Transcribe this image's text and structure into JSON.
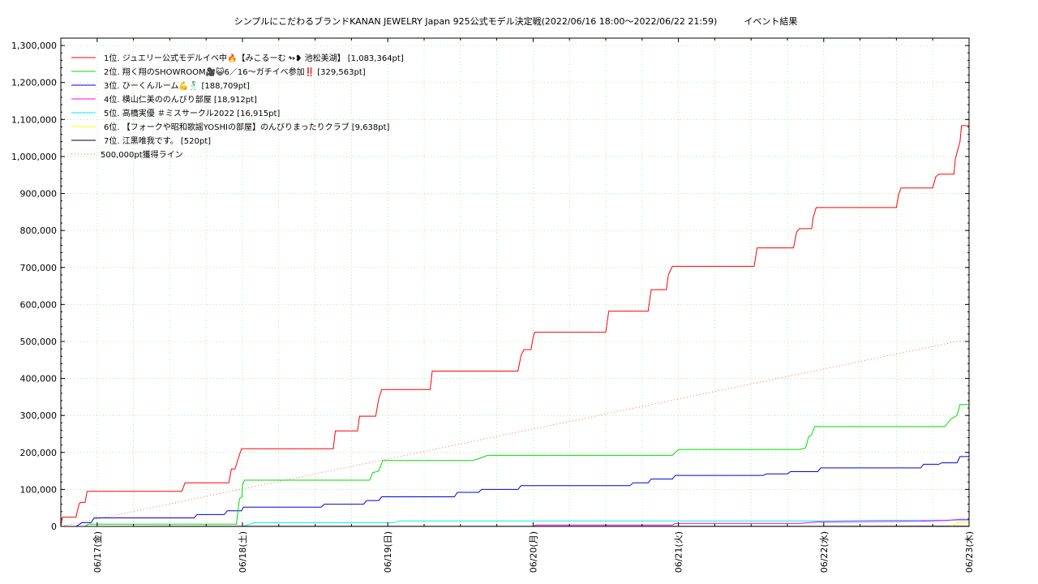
{
  "title": "シンプルにこだわるブランドKANAN JEWELRY Japan 925公式モデル決定戦(2022/06/16 18:00～2022/06/22 21:59)　　　イベント結果",
  "chart_data": {
    "type": "line",
    "title": "シンプルにこだわるブランドKANAN JEWELRY Japan 925公式モデル決定戦(2022/06/16 18:00～2022/06/22 21:59)　　　イベント結果",
    "xlabel": "",
    "ylabel": "",
    "x_range": [
      "2022-06-16 18:00",
      "2022-06-23 00:00"
    ],
    "ylim": [
      0,
      1320000
    ],
    "y_ticks": [
      0,
      100000,
      200000,
      300000,
      400000,
      500000,
      600000,
      700000,
      800000,
      900000,
      1000000,
      1100000,
      1200000,
      1300000
    ],
    "y_tick_labels": [
      "0",
      "100,000",
      "200,000",
      "300,000",
      "400,000",
      "500,000",
      "600,000",
      "700,000",
      "800,000",
      "900,000",
      "1,000,000",
      "1,100,000",
      "1,200,000",
      "1,300,000"
    ],
    "x_ticks": [
      "2022-06-17 00:00",
      "2022-06-18 00:00",
      "2022-06-19 00:00",
      "2022-06-20 00:00",
      "2022-06-21 00:00",
      "2022-06-22 00:00",
      "2022-06-23 00:00"
    ],
    "x_tick_labels": [
      "06/17(金)",
      "06/18(土)",
      "06/19(日)",
      "06/20(月)",
      "06/21(火)",
      "06/22(水)",
      "06/23(木)"
    ],
    "grid": true,
    "legend_position": "top-left",
    "series": [
      {
        "name": "1位. ジュエリー公式モデルイベ中🔥【みこるーむ ↬❥ 池松美湖】 [1,083,364pt]",
        "color": "#ff0000",
        "points": [
          [
            "2022-06-16 18:00",
            0
          ],
          [
            "2022-06-16 18:15",
            25000
          ],
          [
            "2022-06-16 20:30",
            25000
          ],
          [
            "2022-06-16 21:00",
            60000
          ],
          [
            "2022-06-16 21:15",
            65000
          ],
          [
            "2022-06-16 22:00",
            65000
          ],
          [
            "2022-06-16 22:20",
            95000
          ],
          [
            "2022-06-17 14:00",
            95000
          ],
          [
            "2022-06-17 14:30",
            118000
          ],
          [
            "2022-06-17 21:45",
            118000
          ],
          [
            "2022-06-17 22:10",
            155000
          ],
          [
            "2022-06-17 22:45",
            155000
          ],
          [
            "2022-06-17 23:20",
            185000
          ],
          [
            "2022-06-17 23:50",
            210000
          ],
          [
            "2022-06-18 15:00",
            210000
          ],
          [
            "2022-06-18 15:20",
            258000
          ],
          [
            "2022-06-18 19:00",
            258000
          ],
          [
            "2022-06-18 19:20",
            298000
          ],
          [
            "2022-06-18 22:00",
            298000
          ],
          [
            "2022-06-18 22:30",
            345000
          ],
          [
            "2022-06-18 23:00",
            370000
          ],
          [
            "2022-06-19 07:00",
            370000
          ],
          [
            "2022-06-19 07:20",
            420000
          ],
          [
            "2022-06-19 21:30",
            420000
          ],
          [
            "2022-06-19 22:00",
            462000
          ],
          [
            "2022-06-19 22:30",
            478000
          ],
          [
            "2022-06-19 23:40",
            478000
          ],
          [
            "2022-06-20 00:00",
            510000
          ],
          [
            "2022-06-20 00:15",
            525000
          ],
          [
            "2022-06-20 12:00",
            525000
          ],
          [
            "2022-06-20 12:30",
            582000
          ],
          [
            "2022-06-20 19:00",
            582000
          ],
          [
            "2022-06-20 19:30",
            640000
          ],
          [
            "2022-06-20 22:00",
            640000
          ],
          [
            "2022-06-20 22:20",
            680000
          ],
          [
            "2022-06-20 23:00",
            703000
          ],
          [
            "2022-06-21 12:30",
            703000
          ],
          [
            "2022-06-21 13:00",
            753000
          ],
          [
            "2022-06-21 19:00",
            753000
          ],
          [
            "2022-06-21 19:30",
            795000
          ],
          [
            "2022-06-21 20:00",
            805000
          ],
          [
            "2022-06-21 22:00",
            805000
          ],
          [
            "2022-06-21 22:15",
            835000
          ],
          [
            "2022-06-21 22:45",
            862000
          ],
          [
            "2022-06-22 12:00",
            862000
          ],
          [
            "2022-06-22 12:20",
            895000
          ],
          [
            "2022-06-22 12:45",
            915000
          ],
          [
            "2022-06-22 18:00",
            915000
          ],
          [
            "2022-06-22 18:30",
            945000
          ],
          [
            "2022-06-22 19:00",
            952000
          ],
          [
            "2022-06-22 21:30",
            952000
          ],
          [
            "2022-06-22 21:45",
            995000
          ],
          [
            "2022-06-22 22:30",
            1040000
          ],
          [
            "2022-06-22 22:45",
            1083364
          ],
          [
            "2022-06-23 00:00",
            1083364
          ]
        ]
      },
      {
        "name": "2位. 翔く翔のSHOWROOM🎥😺6／16〜ガチイベ参加‼️ [329,563pt]",
        "color": "#00dd00",
        "points": [
          [
            "2022-06-16 18:00",
            0
          ],
          [
            "2022-06-16 22:00",
            0
          ],
          [
            "2022-06-16 22:30",
            6000
          ],
          [
            "2022-06-17 23:00",
            6000
          ],
          [
            "2022-06-17 23:30",
            75000
          ],
          [
            "2022-06-17 23:55",
            80000
          ],
          [
            "2022-06-18 00:00",
            112000
          ],
          [
            "2022-06-18 00:20",
            125000
          ],
          [
            "2022-06-18 21:00",
            125000
          ],
          [
            "2022-06-18 21:30",
            145000
          ],
          [
            "2022-06-18 22:30",
            150000
          ],
          [
            "2022-06-18 23:10",
            178000
          ],
          [
            "2022-06-19 14:00",
            178000
          ],
          [
            "2022-06-19 15:00",
            183000
          ],
          [
            "2022-06-19 16:30",
            192000
          ],
          [
            "2022-06-20 18:00",
            192000
          ],
          [
            "2022-06-20 23:00",
            192000
          ],
          [
            "2022-06-21 00:00",
            208000
          ],
          [
            "2022-06-21 20:00",
            208000
          ],
          [
            "2022-06-21 21:00",
            212000
          ],
          [
            "2022-06-21 21:30",
            242000
          ],
          [
            "2022-06-21 22:00",
            248000
          ],
          [
            "2022-06-21 22:30",
            270000
          ],
          [
            "2022-06-22 20:00",
            270000
          ],
          [
            "2022-06-22 21:00",
            290000
          ],
          [
            "2022-06-22 22:00",
            300000
          ],
          [
            "2022-06-22 22:30",
            329563
          ],
          [
            "2022-06-23 00:00",
            329563
          ]
        ]
      },
      {
        "name": "3位. ひーくんルーム💪🕺 [188,709pt]",
        "color": "#0000dd",
        "points": [
          [
            "2022-06-16 18:00",
            0
          ],
          [
            "2022-06-16 20:30",
            0
          ],
          [
            "2022-06-16 21:30",
            10000
          ],
          [
            "2022-06-16 23:00",
            10000
          ],
          [
            "2022-06-16 23:30",
            23000
          ],
          [
            "2022-06-17 16:00",
            23000
          ],
          [
            "2022-06-17 16:30",
            32000
          ],
          [
            "2022-06-17 21:00",
            32000
          ],
          [
            "2022-06-17 21:30",
            42000
          ],
          [
            "2022-06-17 23:50",
            42000
          ],
          [
            "2022-06-18 00:10",
            52000
          ],
          [
            "2022-06-18 13:00",
            52000
          ],
          [
            "2022-06-18 13:30",
            60000
          ],
          [
            "2022-06-18 20:00",
            60000
          ],
          [
            "2022-06-18 20:30",
            70000
          ],
          [
            "2022-06-18 22:30",
            70000
          ],
          [
            "2022-06-18 23:00",
            80000
          ],
          [
            "2022-06-19 11:00",
            80000
          ],
          [
            "2022-06-19 11:30",
            92000
          ],
          [
            "2022-06-19 15:00",
            92000
          ],
          [
            "2022-06-19 15:30",
            100000
          ],
          [
            "2022-06-19 21:30",
            100000
          ],
          [
            "2022-06-19 22:00",
            110000
          ],
          [
            "2022-06-20 16:00",
            110000
          ],
          [
            "2022-06-20 16:30",
            118000
          ],
          [
            "2022-06-20 19:00",
            118000
          ],
          [
            "2022-06-20 19:30",
            128000
          ],
          [
            "2022-06-20 23:00",
            128000
          ],
          [
            "2022-06-20 23:30",
            138000
          ],
          [
            "2022-06-21 14:00",
            138000
          ],
          [
            "2022-06-21 14:30",
            142000
          ],
          [
            "2022-06-21 18:00",
            142000
          ],
          [
            "2022-06-21 18:30",
            148000
          ],
          [
            "2022-06-21 23:00",
            148000
          ],
          [
            "2022-06-21 23:30",
            158000
          ],
          [
            "2022-06-22 16:00",
            158000
          ],
          [
            "2022-06-22 16:30",
            168000
          ],
          [
            "2022-06-22 19:00",
            168000
          ],
          [
            "2022-06-22 19:30",
            172000
          ],
          [
            "2022-06-22 22:00",
            172000
          ],
          [
            "2022-06-22 22:30",
            188709
          ],
          [
            "2022-06-23 00:00",
            188709
          ]
        ]
      },
      {
        "name": "4位. 横山仁美ののんびり部屋 [18,912pt]",
        "color": "#ff00ff",
        "points": [
          [
            "2022-06-16 18:00",
            0
          ],
          [
            "2022-06-20 00:00",
            0
          ],
          [
            "2022-06-20 00:30",
            4000
          ],
          [
            "2022-06-20 23:00",
            4000
          ],
          [
            "2022-06-20 23:30",
            8000
          ],
          [
            "2022-06-21 20:00",
            8000
          ],
          [
            "2022-06-21 23:00",
            12000
          ],
          [
            "2022-06-22 16:00",
            14000
          ],
          [
            "2022-06-22 20:00",
            16000
          ],
          [
            "2022-06-22 22:30",
            18912
          ],
          [
            "2022-06-23 00:00",
            18912
          ]
        ]
      },
      {
        "name": "5位. 高橋実優 ＃ミスサークル2022 [16,915pt]",
        "color": "#00eeee",
        "points": [
          [
            "2022-06-16 18:00",
            0
          ],
          [
            "2022-06-18 00:00",
            0
          ],
          [
            "2022-06-18 01:00",
            5000
          ],
          [
            "2022-06-18 02:00",
            10000
          ],
          [
            "2022-06-19 01:00",
            10000
          ],
          [
            "2022-06-19 02:00",
            15000
          ],
          [
            "2022-06-22 00:00",
            15000
          ],
          [
            "2022-06-22 08:00",
            16500
          ],
          [
            "2022-06-23 00:00",
            16915
          ]
        ]
      },
      {
        "name": "6位. 【フォークや昭和歌謡YOSHIの部屋】のんびりまったりクラブ [9,638pt]",
        "color": "#ffff00",
        "points": [
          [
            "2022-06-16 18:00",
            0
          ],
          [
            "2022-06-22 21:00",
            0
          ],
          [
            "2022-06-22 22:00",
            9638
          ],
          [
            "2022-06-23 00:00",
            9638
          ]
        ]
      },
      {
        "name": "7位. 江黒唯我です。 [520pt]",
        "color": "#000000",
        "points": [
          [
            "2022-06-16 18:00",
            0
          ],
          [
            "2022-06-17 12:00",
            300
          ],
          [
            "2022-06-23 00:00",
            520
          ]
        ]
      },
      {
        "name": "500,000pt獲得ライン",
        "color": "#ff6666",
        "dotted": true,
        "points": [
          [
            "2022-06-16 18:00",
            0
          ],
          [
            "2022-06-22 22:00",
            500000
          ],
          [
            "2022-06-23 00:00",
            500000
          ]
        ]
      }
    ]
  }
}
